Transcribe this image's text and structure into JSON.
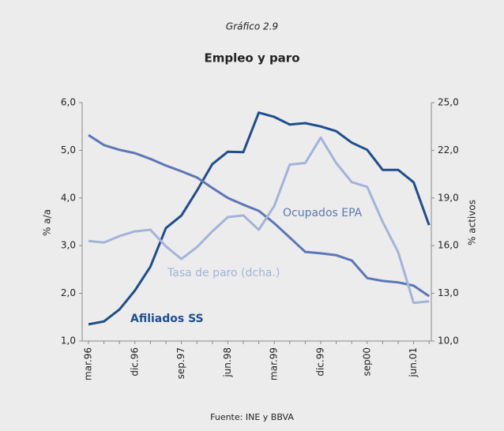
{
  "chart_data": {
    "type": "line",
    "subtitle": "Gráfico 2.9",
    "title": "Empleo y paro",
    "ylabel": "% a/a",
    "y2label": "% activos",
    "source": "Fuente: INE y BBVA",
    "categories": [
      "mar.96",
      null,
      null,
      "dic.96",
      null,
      null,
      "sep.97",
      null,
      null,
      "jun.98",
      null,
      null,
      "mar.99",
      null,
      null,
      "dic.99",
      null,
      null,
      "sep00",
      null,
      null,
      "jun.01",
      null
    ],
    "series": [
      {
        "name": "Afiliados SS",
        "color": "#1f4e8c",
        "values": [
          1.35,
          1.41,
          1.66,
          2.06,
          2.56,
          3.37,
          3.63,
          4.15,
          4.71,
          4.97,
          4.96,
          5.79,
          5.7,
          5.54,
          5.57,
          5.5,
          5.4,
          5.16,
          5.01,
          4.59,
          4.59,
          4.33,
          3.43
        ]
      },
      {
        "name": "Ocupados EPA",
        "color": "#5b77b5",
        "values": [
          5.32,
          5.11,
          5.01,
          4.94,
          4.82,
          4.68,
          4.56,
          4.43,
          4.21,
          4.0,
          3.86,
          3.73,
          3.47,
          3.17,
          2.87,
          2.84,
          2.8,
          2.69,
          2.32,
          2.26,
          2.23,
          2.16,
          1.94
        ]
      },
      {
        "name": "Tasa de paro (dcha.)",
        "color": "#a3b3d9",
        "axis": "y2",
        "values": [
          16.3,
          16.2,
          16.6,
          16.9,
          17.0,
          15.96,
          15.16,
          15.9,
          16.9,
          17.8,
          17.9,
          17.0,
          18.5,
          21.1,
          21.2,
          22.8,
          21.2,
          20.0,
          19.7,
          17.5,
          15.6,
          12.4,
          12.5
        ]
      }
    ],
    "ylim": [
      1,
      6
    ],
    "yticks": [
      {
        "value": 1,
        "label": "1,0"
      },
      {
        "value": 2,
        "label": "2,0"
      },
      {
        "value": 3,
        "label": "3,0"
      },
      {
        "value": 4,
        "label": "4,0"
      },
      {
        "value": 5,
        "label": "5,0"
      },
      {
        "value": 6,
        "label": "6,0"
      }
    ],
    "y2lim": [
      10,
      25
    ],
    "y2ticks": [
      {
        "value": 10,
        "label": "10,0"
      },
      {
        "value": 13,
        "label": "13,0"
      },
      {
        "value": 16,
        "label": "16,0"
      },
      {
        "value": 19,
        "label": "19,0"
      },
      {
        "value": 22,
        "label": "22,0"
      },
      {
        "value": 25,
        "label": "25,0"
      }
    ],
    "grid": false
  }
}
